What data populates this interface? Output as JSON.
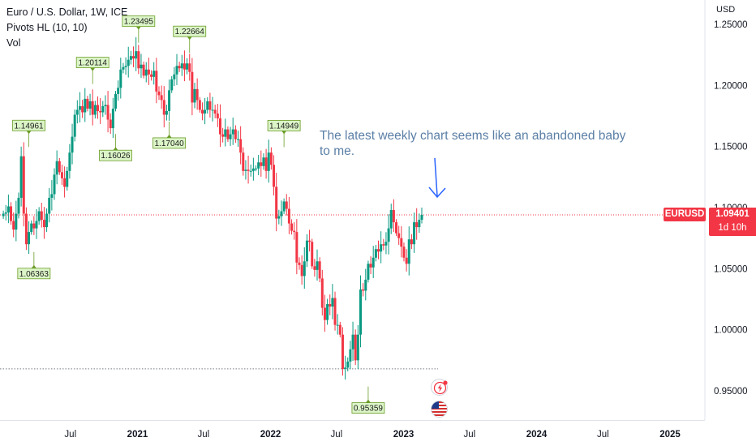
{
  "legend": {
    "title": "Euro / U.S. Dollar, 1W, ICE",
    "indicator": "Pivots HL (10, 10)",
    "volume": "Vol"
  },
  "currency_label": "USD",
  "annotation": "The latest weekly chart seems like an abandoned baby to me.",
  "price_badge": {
    "symbol": "EURUSD",
    "price": "1.09401",
    "countdown": "1d 10h"
  },
  "icons": [
    "lightning-icon",
    "us-flag-icon"
  ],
  "colors": {
    "up": "#089981",
    "down": "#f23645",
    "pivot_bg": "#dcf5c8",
    "pivot_border": "#6a9c26",
    "axis_text": "#131722",
    "annotation": "#5b7fa6",
    "arrow": "#2962ff"
  },
  "chart_data": {
    "type": "candlestick",
    "title": "Euro / U.S. Dollar, 1W, ICE",
    "ylabel": "USD",
    "ylim": [
      0.925,
      1.26
    ],
    "y_ticks": [
      "1.25000",
      "1.20000",
      "1.15000",
      "1.10000",
      "1.05000",
      "1.00000",
      "0.95000"
    ],
    "x_ticks": [
      "Jul",
      "2021",
      "Jul",
      "2022",
      "Jul",
      "2023",
      "Jul",
      "2024",
      "Jul",
      "2025"
    ],
    "last_price": 1.09401,
    "support_line": 0.968,
    "pivot_labels": [
      {
        "label": "1.14961",
        "date": "2020-03-09",
        "type": "high"
      },
      {
        "label": "1.06363",
        "date": "2020-03-23",
        "type": "low"
      },
      {
        "label": "1.20114",
        "date": "2020-08-31",
        "type": "high"
      },
      {
        "label": "1.16026",
        "date": "2020-11-02",
        "type": "low"
      },
      {
        "label": "1.23495",
        "date": "2021-01-04",
        "type": "high"
      },
      {
        "label": "1.17040",
        "date": "2021-03-29",
        "type": "low"
      },
      {
        "label": "1.22664",
        "date": "2021-05-24",
        "type": "high"
      },
      {
        "label": "1.14949",
        "date": "2022-02-07",
        "type": "high"
      },
      {
        "label": "0.95359",
        "date": "2022-09-26",
        "type": "low"
      }
    ],
    "closes": [
      1.095,
      1.096,
      1.101,
      1.089,
      1.082,
      1.095,
      1.108,
      1.142,
      1.095,
      1.07,
      1.08,
      1.087,
      1.083,
      1.089,
      1.097,
      1.09,
      1.084,
      1.095,
      1.108,
      1.111,
      1.127,
      1.138,
      1.129,
      1.124,
      1.117,
      1.13,
      1.145,
      1.158,
      1.176,
      1.18,
      1.183,
      1.178,
      1.189,
      1.181,
      1.187,
      1.176,
      1.184,
      1.179,
      1.178,
      1.183,
      1.184,
      1.172,
      1.165,
      1.181,
      1.193,
      1.198,
      1.213,
      1.215,
      1.216,
      1.221,
      1.224,
      1.222,
      1.228,
      1.214,
      1.217,
      1.208,
      1.213,
      1.209,
      1.207,
      1.212,
      1.195,
      1.192,
      1.188,
      1.176,
      1.179,
      1.196,
      1.205,
      1.209,
      1.216,
      1.214,
      1.218,
      1.213,
      1.218,
      1.211,
      1.186,
      1.197,
      1.188,
      1.18,
      1.177,
      1.18,
      1.187,
      1.18,
      1.18,
      1.177,
      1.173,
      1.16,
      1.158,
      1.164,
      1.156,
      1.16,
      1.164,
      1.156,
      1.156,
      1.145,
      1.13,
      1.131,
      1.13,
      1.13,
      1.132,
      1.132,
      1.137,
      1.134,
      1.141,
      1.13,
      1.145,
      1.135,
      1.117,
      1.091,
      1.093,
      1.097,
      1.105,
      1.099,
      1.087,
      1.081,
      1.08,
      1.055,
      1.053,
      1.044,
      1.056,
      1.073,
      1.072,
      1.052,
      1.049,
      1.056,
      1.042,
      1.018,
      1.008,
      1.021,
      1.019,
      1.026,
      1.004,
      1.004,
      0.996,
      0.968,
      0.969,
      0.974,
      0.984,
      0.996,
      0.975,
      0.996,
      1.033,
      1.032,
      1.041,
      1.054,
      1.051,
      1.059,
      1.066,
      1.064,
      1.07,
      1.069,
      1.072,
      1.083,
      1.098,
      1.088,
      1.079,
      1.075,
      1.068,
      1.059,
      1.054,
      1.074,
      1.07,
      1.088,
      1.084,
      1.09,
      1.094
    ]
  }
}
